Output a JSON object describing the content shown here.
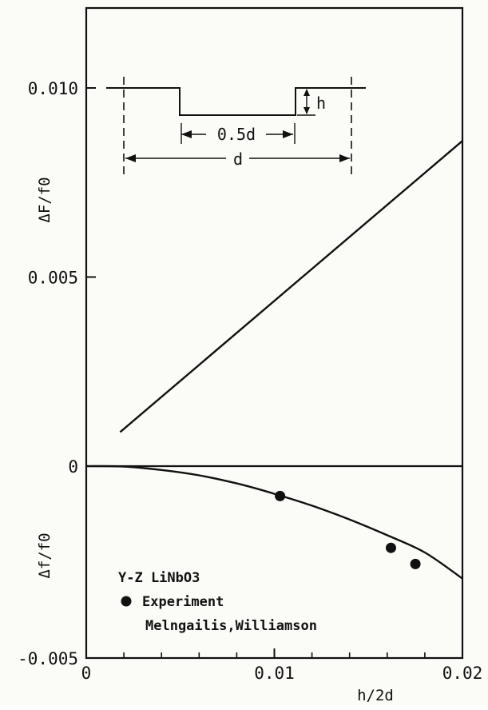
{
  "chart_data": {
    "type": "line",
    "title": "",
    "xlabel": "h/2d",
    "xlim": [
      0,
      0.02
    ],
    "x_ticks": [
      "0",
      "0.01",
      "0.02"
    ],
    "ylabel_upper": "ΔF/f0",
    "ylabel_lower": "Δf/f0",
    "ylim": [
      -0.005,
      0.012
    ],
    "y_ticks": [
      "-0.005",
      "0",
      "0.005",
      "0.010"
    ],
    "grid": false,
    "series": [
      {
        "type": "line",
        "x": [
          0.0018,
          0.02
        ],
        "y": [
          0.0009,
          0.0086
        ]
      },
      {
        "type": "line",
        "x": [
          0.0,
          0.002,
          0.004,
          0.006,
          0.008,
          0.01,
          0.012,
          0.014,
          0.016,
          0.018,
          0.02
        ],
        "y": [
          0.0,
          -1e-05,
          -0.0001,
          -0.00024,
          -0.00045,
          -0.00072,
          -0.00103,
          -0.00139,
          -0.0018,
          -0.00225,
          -0.00293
        ]
      },
      {
        "name": "Experiment",
        "type": "scatter",
        "x": [
          0.0103,
          0.0162,
          0.0175
        ],
        "y": [
          -0.00078,
          -0.00213,
          -0.00255
        ]
      }
    ],
    "legend": {
      "position": "bottom-left",
      "material": "Y-Z LiNbO3",
      "marker_label": "Experiment",
      "source": "Melngailis,Williamson"
    },
    "inset": {
      "labels": [
        "h",
        "0.5d",
        "d"
      ]
    }
  }
}
